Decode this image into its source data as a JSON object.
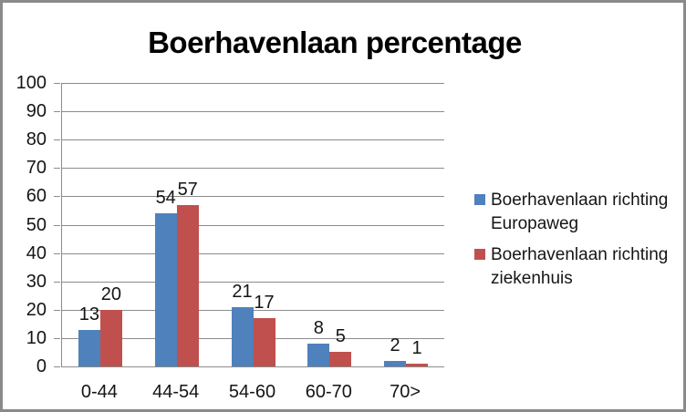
{
  "frame": {
    "border_color": "#8a8a8a",
    "background": "#ffffff"
  },
  "chart_data": {
    "type": "bar",
    "title": "Boerhavenlaan percentage",
    "categories": [
      "0-44",
      "44-54",
      "54-60",
      "60-70",
      "70>"
    ],
    "series": [
      {
        "name": "Boerhavenlaan richting Europaweg",
        "legend_lines": [
          "Boerhavenlaan richting",
          "Europaweg"
        ],
        "color": "#4F81BD",
        "values": [
          13,
          54,
          21,
          8,
          2
        ]
      },
      {
        "name": "Boerhavenlaan richting ziekenhuis",
        "legend_lines": [
          "Boerhavenlaan richting",
          "ziekenhuis"
        ],
        "color": "#C0504D",
        "values": [
          20,
          57,
          17,
          5,
          1
        ]
      }
    ],
    "xlabel": "",
    "ylabel": "",
    "ylim": [
      0,
      100
    ],
    "yticks": [
      0,
      10,
      20,
      30,
      40,
      50,
      60,
      70,
      80,
      90,
      100
    ],
    "grid": true,
    "data_labels": true,
    "legend_position": "right",
    "gridline_color": "#8c8c8c",
    "axis_color": "#8c8c8c",
    "label_color": "#151515",
    "title_color": "#000000"
  }
}
